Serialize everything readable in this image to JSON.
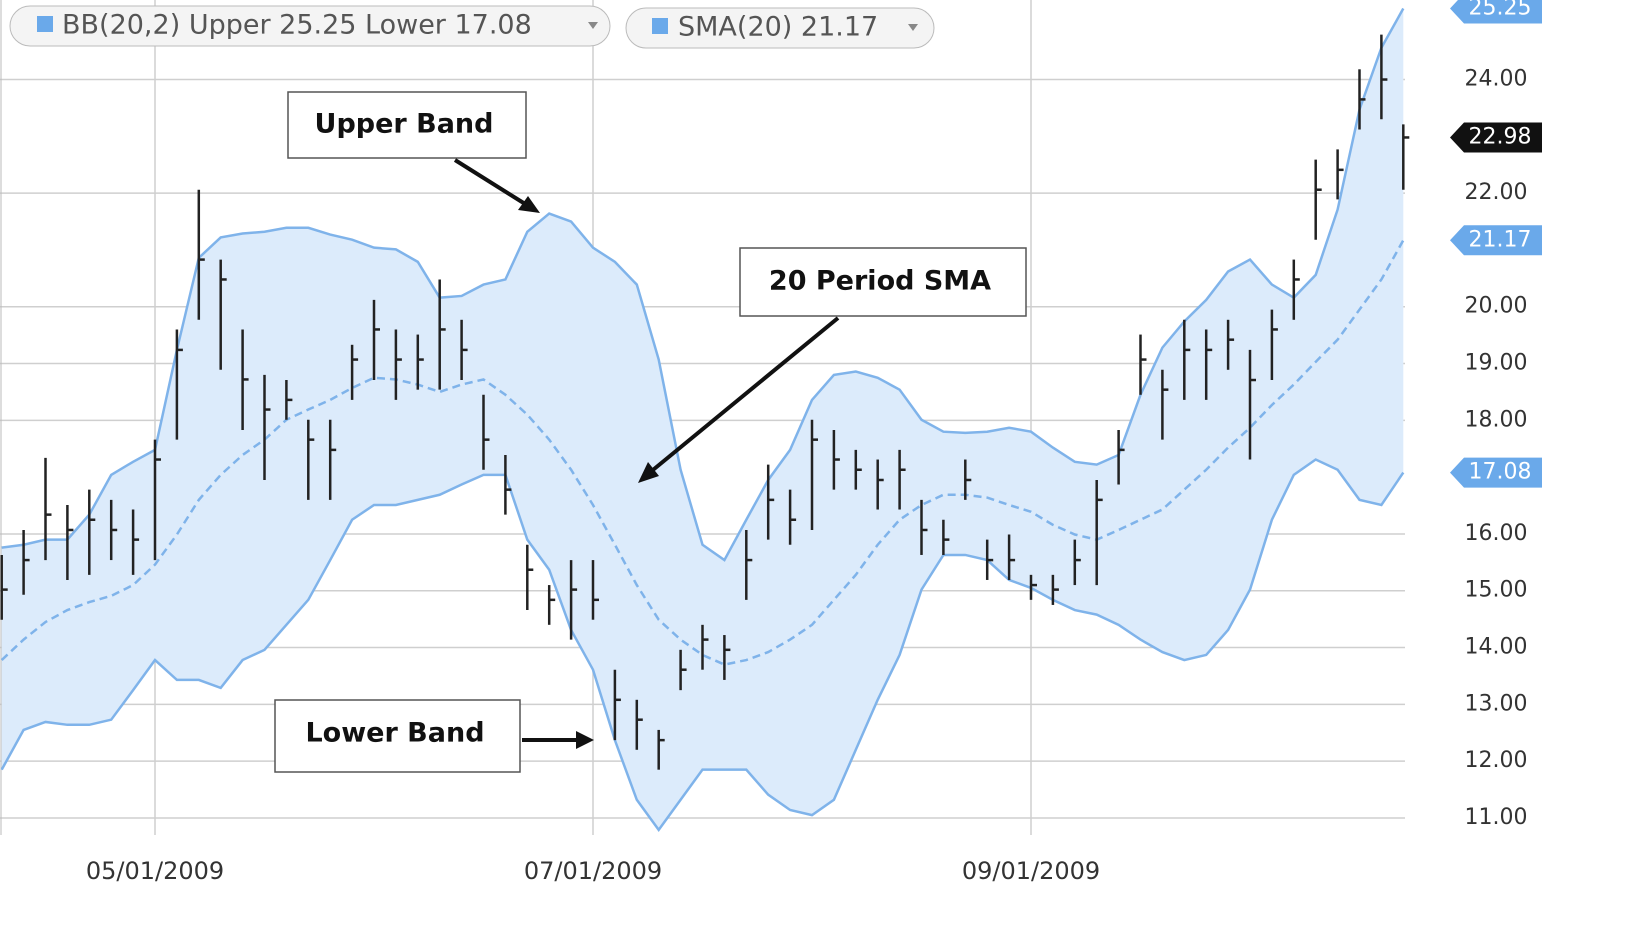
{
  "chart_data": {
    "type": "ohlc",
    "legend": [
      "BB(20,2) Upper 25.25 Lower 17.08",
      "SMA(20) 21.17"
    ],
    "annotations": [
      "Upper Band",
      "20 Period SMA",
      "Lower Band"
    ],
    "categories": [
      null,
      null,
      null,
      null,
      null,
      null,
      null,
      "05/01/2009",
      null,
      null,
      null,
      null,
      null,
      null,
      null,
      null,
      null,
      null,
      null,
      null,
      null,
      null,
      null,
      null,
      null,
      null,
      null,
      "07/01/2009",
      null,
      null,
      null,
      null,
      null,
      null,
      null,
      null,
      null,
      null,
      null,
      null,
      null,
      null,
      null,
      null,
      null,
      null,
      null,
      "09/01/2009",
      null,
      null,
      null,
      null,
      null,
      null,
      null,
      null,
      null,
      null,
      null,
      null,
      null,
      null,
      null,
      null,
      null
    ],
    "high": [
      15.63,
      16.07,
      17.34,
      16.51,
      16.78,
      16.6,
      16.43,
      17.66,
      19.6,
      22.06,
      20.83,
      19.6,
      18.8,
      18.71,
      18.01,
      18.01,
      19.33,
      20.12,
      19.6,
      19.51,
      20.48,
      19.77,
      18.45,
      17.39,
      15.81,
      15.1,
      15.54,
      15.54,
      13.61,
      13.08,
      12.55,
      13.96,
      14.4,
      14.22,
      16.07,
      17.22,
      16.78,
      18.01,
      17.83,
      17.48,
      17.31,
      17.48,
      16.6,
      16.25,
      17.31,
      15.9,
      15.99,
      15.28,
      15.28,
      15.9,
      16.95,
      17.83,
      19.51,
      18.89,
      19.77,
      19.6,
      19.77,
      19.24,
      19.95,
      20.83,
      22.59,
      22.77,
      24.18,
      24.79,
      23.21
    ],
    "low": [
      14.49,
      14.93,
      15.54,
      15.19,
      15.28,
      15.54,
      15.28,
      15.54,
      17.66,
      19.77,
      18.89,
      17.83,
      16.95,
      18.01,
      16.6,
      16.6,
      18.36,
      18.71,
      18.36,
      18.54,
      18.54,
      18.71,
      17.13,
      16.34,
      14.66,
      14.4,
      14.14,
      14.49,
      12.37,
      12.2,
      11.85,
      13.25,
      13.61,
      13.43,
      14.84,
      15.9,
      15.81,
      16.07,
      16.78,
      16.78,
      16.43,
      16.43,
      15.63,
      15.63,
      16.6,
      15.19,
      15.19,
      14.84,
      14.75,
      15.1,
      15.1,
      16.87,
      18.45,
      17.66,
      18.36,
      18.36,
      18.89,
      17.31,
      18.71,
      19.77,
      21.18,
      21.89,
      23.12,
      23.3,
      22.06
    ],
    "close": [
      15.02,
      15.54,
      16.34,
      16.07,
      16.25,
      16.07,
      15.9,
      17.31,
      19.24,
      20.83,
      20.48,
      18.72,
      18.19,
      18.36,
      17.66,
      17.48,
      19.07,
      19.6,
      19.07,
      19.07,
      19.6,
      19.24,
      17.66,
      16.78,
      15.37,
      14.84,
      15.02,
      14.84,
      13.08,
      12.73,
      12.37,
      13.61,
      14.14,
      13.96,
      15.54,
      16.6,
      16.25,
      17.66,
      17.31,
      17.13,
      16.95,
      17.13,
      16.07,
      15.9,
      16.95,
      15.54,
      15.54,
      15.1,
      15.02,
      15.54,
      16.6,
      17.48,
      19.07,
      18.54,
      19.24,
      19.24,
      19.42,
      18.71,
      19.6,
      20.48,
      22.06,
      22.41,
      23.65,
      24.0,
      22.98
    ],
    "bar_color": "#222222",
    "bands": [
      {
        "color": "#7fb3ea",
        "values": [
          15.76,
          15.81,
          15.9,
          15.9,
          16.34,
          17.04,
          17.27,
          17.48,
          19.24,
          20.86,
          21.22,
          21.29,
          21.32,
          21.39,
          21.39,
          21.27,
          21.18,
          21.04,
          21.01,
          20.79,
          20.16,
          20.19,
          20.39,
          20.48,
          21.32,
          21.64,
          21.5,
          21.04,
          20.79,
          20.39,
          19.07,
          17.13,
          15.81,
          15.54,
          16.25,
          16.95,
          17.48,
          18.36,
          18.8,
          18.86,
          18.75,
          18.54,
          18.01,
          17.8,
          17.78,
          17.8,
          17.87,
          17.8,
          17.52,
          17.27,
          17.22,
          17.39,
          18.45,
          19.28,
          19.74,
          20.12,
          20.62,
          20.83,
          20.39,
          20.16,
          20.56,
          21.71,
          23.47,
          24.56,
          25.25
        ]
      },
      {
        "color": "#7fb3ea",
        "dashed": true,
        "values": [
          13.78,
          14.14,
          14.45,
          14.66,
          14.8,
          14.91,
          15.1,
          15.46,
          15.99,
          16.6,
          17.04,
          17.39,
          17.66,
          18.01,
          18.19,
          18.36,
          18.57,
          18.75,
          18.72,
          18.63,
          18.5,
          18.63,
          18.72,
          18.45,
          18.1,
          17.66,
          17.13,
          16.51,
          15.81,
          15.1,
          14.49,
          14.14,
          13.87,
          13.7,
          13.78,
          13.92,
          14.14,
          14.4,
          14.84,
          15.28,
          15.81,
          16.25,
          16.51,
          16.69,
          16.69,
          16.64,
          16.51,
          16.39,
          16.16,
          15.99,
          15.9,
          16.07,
          16.25,
          16.43,
          16.78,
          17.13,
          17.52,
          17.87,
          18.27,
          18.63,
          19.03,
          19.42,
          19.95,
          20.48,
          21.17
        ]
      },
      {
        "color": "#7fb3ea",
        "values": [
          11.85,
          12.55,
          12.69,
          12.64,
          12.64,
          12.73,
          13.25,
          13.78,
          13.43,
          13.43,
          13.29,
          13.78,
          13.96,
          14.4,
          14.84,
          15.54,
          16.25,
          16.51,
          16.51,
          16.6,
          16.69,
          16.87,
          17.04,
          17.04,
          15.9,
          15.37,
          14.31,
          13.61,
          12.37,
          11.32,
          10.79,
          11.32,
          11.85,
          11.85,
          11.85,
          11.41,
          11.14,
          11.05,
          11.32,
          12.2,
          13.08,
          13.87,
          15.02,
          15.63,
          15.63,
          15.54,
          15.19,
          15.05,
          14.84,
          14.66,
          14.58,
          14.4,
          14.14,
          13.92,
          13.78,
          13.87,
          14.31,
          15.02,
          16.25,
          17.04,
          17.31,
          17.13,
          16.6,
          16.51,
          17.08
        ]
      }
    ],
    "band_fill": "#dcebfb",
    "price_markers": [
      {
        "value": 25.25,
        "color": "#6aa9ea"
      },
      {
        "value": 22.98,
        "color": "#111111"
      },
      {
        "value": 21.17,
        "color": "#6aa9ea"
      },
      {
        "value": 17.08,
        "color": "#6aa9ea"
      }
    ],
    "ylim": [
      10.7,
      25.4
    ],
    "yticks": [
      {
        "value": 11,
        "label": "11.00"
      },
      {
        "value": 12,
        "label": "12.00"
      },
      {
        "value": 13,
        "label": "13.00"
      },
      {
        "value": 14,
        "label": "14.00"
      },
      {
        "value": 15,
        "label": "15.00"
      },
      {
        "value": 16,
        "label": "16.00"
      },
      {
        "value": 18,
        "label": "18.00"
      },
      {
        "value": 19,
        "label": "19.00"
      },
      {
        "value": 20,
        "label": "20.00"
      },
      {
        "value": 22,
        "label": "22.00"
      },
      {
        "value": 24,
        "label": "24.00"
      }
    ],
    "grid": true
  }
}
